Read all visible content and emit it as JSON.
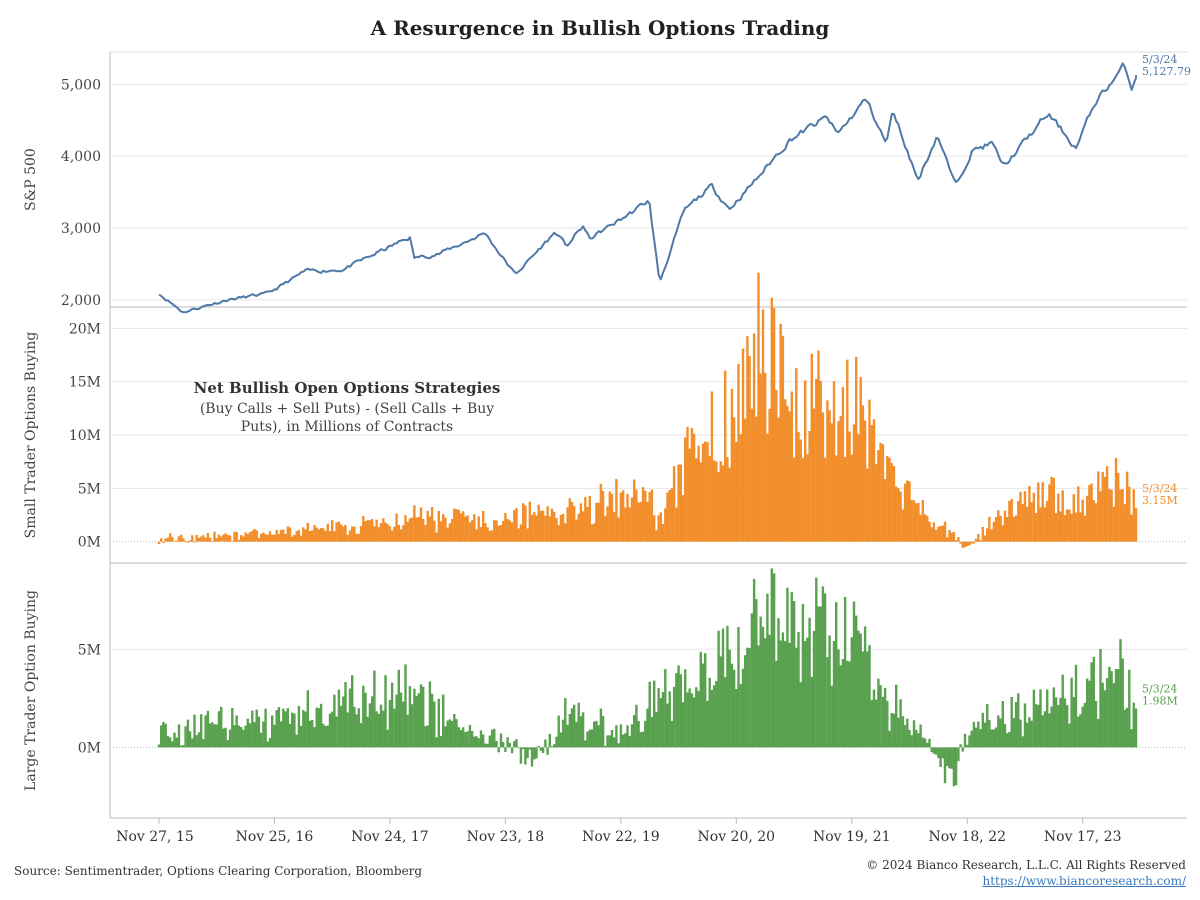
{
  "header": {
    "title": "A Resurgence in Bullish Options Trading"
  },
  "footer": {
    "source": "Source: Sentimentrader, Options Clearing Corporation, Bloomberg",
    "copyright": "© 2024 Bianco Research, L.L.C. All Rights Reserved",
    "url": "https://www.biancoresearch.com/"
  },
  "colors": {
    "sp500": "#4e79a7",
    "small": "#f28e2b",
    "large": "#59a14f",
    "grid": "#e6e6e6",
    "axis": "#bbbbbb"
  },
  "chart_data": [
    {
      "type": "line",
      "panel": "sp500",
      "ylabel": "S&P 500",
      "ylim": [
        1900,
        5450
      ],
      "yticks": [
        2000,
        3000,
        4000,
        5000
      ],
      "ytick_labels": [
        "2,000",
        "3,000",
        "4,000",
        "5,000"
      ],
      "end_label": {
        "date": "5/3/24",
        "value": "5,127.79"
      },
      "series": [
        {
          "x": [
            "2015-11-27",
            "2016-02-11",
            "2016-06-27",
            "2016-11-04",
            "2017-03-01",
            "2017-06-30",
            "2018-01-26",
            "2018-02-08",
            "2018-05-01",
            "2018-09-20",
            "2018-12-24",
            "2019-04-30",
            "2019-06-03",
            "2019-07-26",
            "2019-08-15",
            "2019-12-31",
            "2020-02-19",
            "2020-03-23",
            "2020-06-08",
            "2020-09-02",
            "2020-10-30",
            "2021-01-29",
            "2021-05-07",
            "2021-09-02",
            "2021-10-04",
            "2022-01-03",
            "2022-03-08",
            "2022-03-29",
            "2022-06-16",
            "2022-08-16",
            "2022-10-12",
            "2022-12-01",
            "2023-02-02",
            "2023-03-13",
            "2023-07-31",
            "2023-10-27",
            "2023-12-29",
            "2024-03-28",
            "2024-04-19",
            "2024-05-03"
          ],
          "y": [
            2090,
            1829,
            2000,
            2085,
            2395,
            2423,
            2872,
            2581,
            2648,
            2930,
            2351,
            2945,
            2744,
            3025,
            2847,
            3230,
            3386,
            2237,
            3232,
            3580,
            3270,
            3714,
            4232,
            4536,
            4300,
            4796,
            4170,
            4631,
            3666,
            4305,
            3577,
            4076,
            4179,
            3855,
            4588,
            4117,
            4770,
            5254,
            4967,
            5127.79
          ]
        }
      ]
    },
    {
      "type": "bar",
      "panel": "small",
      "ylabel": "Small Trader Options Buying",
      "ylim": [
        -2.0,
        22.0
      ],
      "yticks": [
        0,
        5,
        10,
        15,
        20
      ],
      "ytick_labels": [
        "0M",
        "5M",
        "10M",
        "15M",
        "20M"
      ],
      "annotation": {
        "title": "Net Bullish Open Options Strategies",
        "line1": "(Buy Calls + Sell Puts) - (Sell Calls + Buy",
        "line2": "Puts), in Millions of Contracts"
      },
      "end_label": {
        "date": "5/3/24",
        "value": "3.15M"
      },
      "x": [
        "2015-11-27",
        "2016-06-01",
        "2016-11-25",
        "2017-06-01",
        "2017-11-24",
        "2018-02-09",
        "2018-06-01",
        "2018-11-23",
        "2019-06-01",
        "2019-11-22",
        "2020-02-21",
        "2020-03-20",
        "2020-06-12",
        "2020-11-20",
        "2021-01-29",
        "2021-06-01",
        "2021-11-19",
        "2022-03-01",
        "2022-06-17",
        "2022-11-18",
        "2023-03-01",
        "2023-06-30",
        "2023-11-17",
        "2024-03-08",
        "2024-05-03"
      ],
      "y": [
        0.3,
        0.5,
        0.9,
        1.2,
        1.6,
        2.5,
        2.0,
        2.2,
        2.8,
        4.0,
        4.3,
        1.5,
        7.5,
        13.0,
        18.5,
        12.0,
        13.5,
        6.0,
        3.5,
        -0.5,
        2.5,
        4.5,
        3.5,
        6.0,
        3.15
      ]
    },
    {
      "type": "bar",
      "panel": "large",
      "ylabel": "Large Trader Option Buying",
      "ylim": [
        -3.6,
        9.4
      ],
      "yticks": [
        0,
        5
      ],
      "ytick_labels": [
        "0M",
        "5M"
      ],
      "end_label": {
        "date": "5/3/24",
        "value": "1.98M"
      },
      "x": [
        "2015-11-27",
        "2016-06-01",
        "2016-11-25",
        "2017-06-01",
        "2017-11-24",
        "2018-02-09",
        "2018-06-01",
        "2018-11-23",
        "2019-03-01",
        "2019-06-01",
        "2019-11-22",
        "2020-03-20",
        "2020-06-12",
        "2020-11-20",
        "2021-01-29",
        "2021-06-01",
        "2021-11-19",
        "2022-03-01",
        "2022-06-17",
        "2022-10-07",
        "2022-11-18",
        "2023-03-01",
        "2023-06-30",
        "2023-11-17",
        "2024-03-08",
        "2024-05-03"
      ],
      "y": [
        0.5,
        1.2,
        1.5,
        2.2,
        2.4,
        3.0,
        1.2,
        0.2,
        -0.8,
        1.6,
        0.8,
        2.5,
        3.5,
        5.0,
        7.2,
        5.5,
        6.0,
        2.5,
        1.0,
        -1.8,
        0.5,
        1.8,
        2.0,
        3.0,
        4.2,
        1.98
      ]
    }
  ],
  "x_axis": {
    "tick_dates": [
      "2015-11-27",
      "2016-11-25",
      "2017-11-24",
      "2018-11-23",
      "2019-11-22",
      "2020-11-20",
      "2021-11-19",
      "2022-11-18",
      "2023-11-17"
    ],
    "tick_labels": [
      "Nov 27, 15",
      "Nov 25, 16",
      "Nov 24, 17",
      "Nov 23, 18",
      "Nov 22, 19",
      "Nov 20, 20",
      "Nov 19, 21",
      "Nov 18, 22",
      "Nov 17, 23"
    ]
  }
}
